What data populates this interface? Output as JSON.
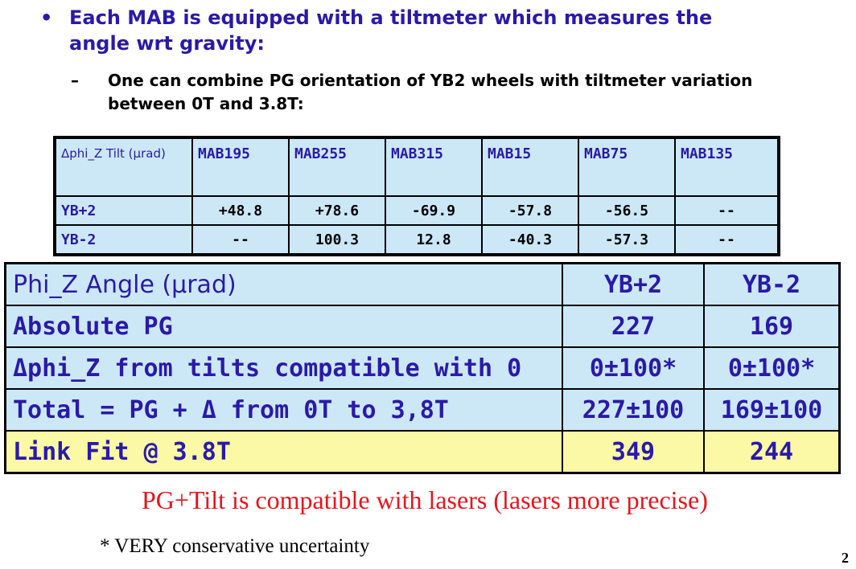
{
  "bullet": {
    "marker": "•",
    "text": "Each MAB is equipped with a tiltmeter which measures the angle wrt gravity:"
  },
  "sub_bullet": {
    "marker": "–",
    "text": "One can combine PG orientation of YB2 wheels with tiltmeter variation between 0T and 3.8T:"
  },
  "small_table": {
    "corner": "Δphi_Z Tilt (μrad)",
    "columns": [
      "MAB195",
      "MAB255",
      "MAB315",
      "MAB15",
      "MAB75",
      "MAB135"
    ],
    "rows": [
      {
        "label": "YB+2",
        "values": [
          "+48.8",
          "+78.6",
          "-69.9",
          "-57.8",
          "-56.5",
          "--"
        ]
      },
      {
        "label": "YB-2",
        "values": [
          "--",
          "100.3",
          "12.8",
          "-40.3",
          "-57.3",
          "--"
        ]
      }
    ]
  },
  "big_table": {
    "header": {
      "label": "Phi_Z Angle  (μrad)",
      "col1": "YB+2",
      "col2": "YB-2"
    },
    "rows": [
      {
        "label": "Absolute PG",
        "col1": "227",
        "col2": "169"
      },
      {
        "label": "Δphi_Z from tilts compatible with 0",
        "col1": "0±100*",
        "col2": "0±100*"
      },
      {
        "label": "Total = PG + Δ from 0T to 3,8T",
        "col1": "227±100",
        "col2": "169±100"
      },
      {
        "label": "Link Fit @ 3.8T",
        "col1": "349",
        "col2": "244"
      }
    ]
  },
  "conclusion": "PG+Tilt is compatible with lasers (lasers more precise)",
  "footnote": "* VERY conservative uncertainty",
  "page_number": "2",
  "colors": {
    "accent_text": "#2a1aa8",
    "table_fill": "#cce8f7",
    "highlight_fill": "#fbf8a6",
    "conclusion": "#e8141c"
  }
}
